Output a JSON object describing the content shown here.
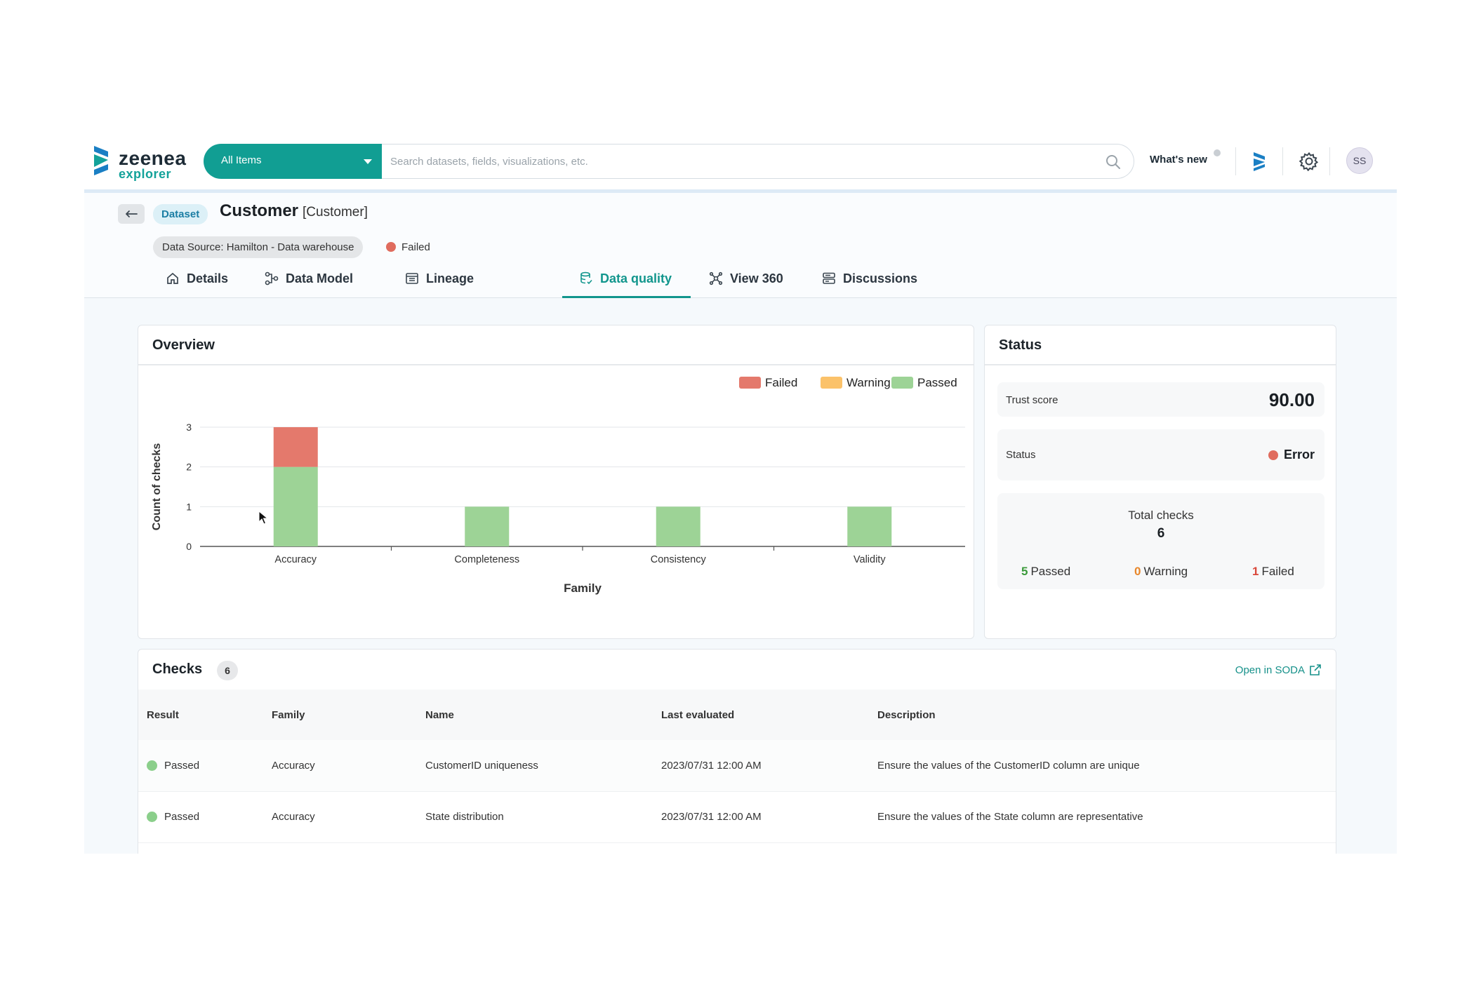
{
  "header": {
    "logo_brand": "zeenea",
    "logo_sub": "explorer",
    "scope_select_value": "All Items",
    "search_placeholder": "Search datasets, fields, visualizations, etc.",
    "whats_new_label": "What's new",
    "avatar_initials": "SS"
  },
  "dataset": {
    "type_badge": "Dataset",
    "name": "Customer",
    "code": "[Customer]",
    "source_label": "Data Source:",
    "source_value": "Hamilton - Data warehouse",
    "quality_status": "Failed",
    "quality_status_color": "#e06c5e"
  },
  "tabs": [
    {
      "label": "Details",
      "icon": "home-icon"
    },
    {
      "label": "Data Model",
      "icon": "data-model-icon"
    },
    {
      "label": "Lineage",
      "icon": "lineage-icon"
    },
    {
      "label": "Data quality",
      "icon": "database-check-icon",
      "active": true
    },
    {
      "label": "View 360",
      "icon": "view-360-icon"
    },
    {
      "label": "Discussions",
      "icon": "discussions-icon"
    }
  ],
  "overview": {
    "title": "Overview"
  },
  "chart_data": {
    "type": "bar",
    "stacked": true,
    "categories": [
      "Accuracy",
      "Completeness",
      "Consistency",
      "Validity"
    ],
    "series": [
      {
        "name": "Passed",
        "values": [
          2,
          1,
          1,
          1
        ],
        "color": "#9dd396"
      },
      {
        "name": "Warning",
        "values": [
          0,
          0,
          0,
          0
        ],
        "color": "#fbc26a"
      },
      {
        "name": "Failed",
        "values": [
          1,
          0,
          0,
          0
        ],
        "color": "#e4796c"
      }
    ],
    "legend_order": [
      "Failed",
      "Warning",
      "Passed"
    ],
    "legend_position": "top-right",
    "xlabel": "Family",
    "ylabel": "Count of checks",
    "ylim": [
      0,
      3
    ],
    "yticks": [
      0,
      1,
      2,
      3
    ],
    "grid": true
  },
  "status": {
    "title": "Status",
    "trust_score_label": "Trust score",
    "trust_score_value": "90.00",
    "status_label": "Status",
    "status_value": "Error",
    "status_color": "#e06c5e",
    "total_checks_label": "Total checks",
    "total_checks_value": "6",
    "passed_count": "5",
    "passed_label": "Passed",
    "passed_color": "#3a9a3a",
    "warning_count": "0",
    "warning_label": "Warning",
    "warning_color": "#e8862a",
    "failed_count": "1",
    "failed_label": "Failed",
    "failed_color": "#d9483b"
  },
  "checks": {
    "title": "Checks",
    "count": "6",
    "open_link_label": "Open in SODA",
    "columns": [
      "Result",
      "Family",
      "Name",
      "Last evaluated",
      "Description"
    ],
    "rows": [
      {
        "result": "Passed",
        "family": "Accuracy",
        "name": "CustomerID uniqueness",
        "last_evaluated": "2023/07/31 12:00 AM",
        "description": "Ensure the values of the CustomerID column are unique"
      },
      {
        "result": "Passed",
        "family": "Accuracy",
        "name": "State distribution",
        "last_evaluated": "2023/07/31 12:00 AM",
        "description": "Ensure the values of the State column are representative"
      }
    ]
  }
}
